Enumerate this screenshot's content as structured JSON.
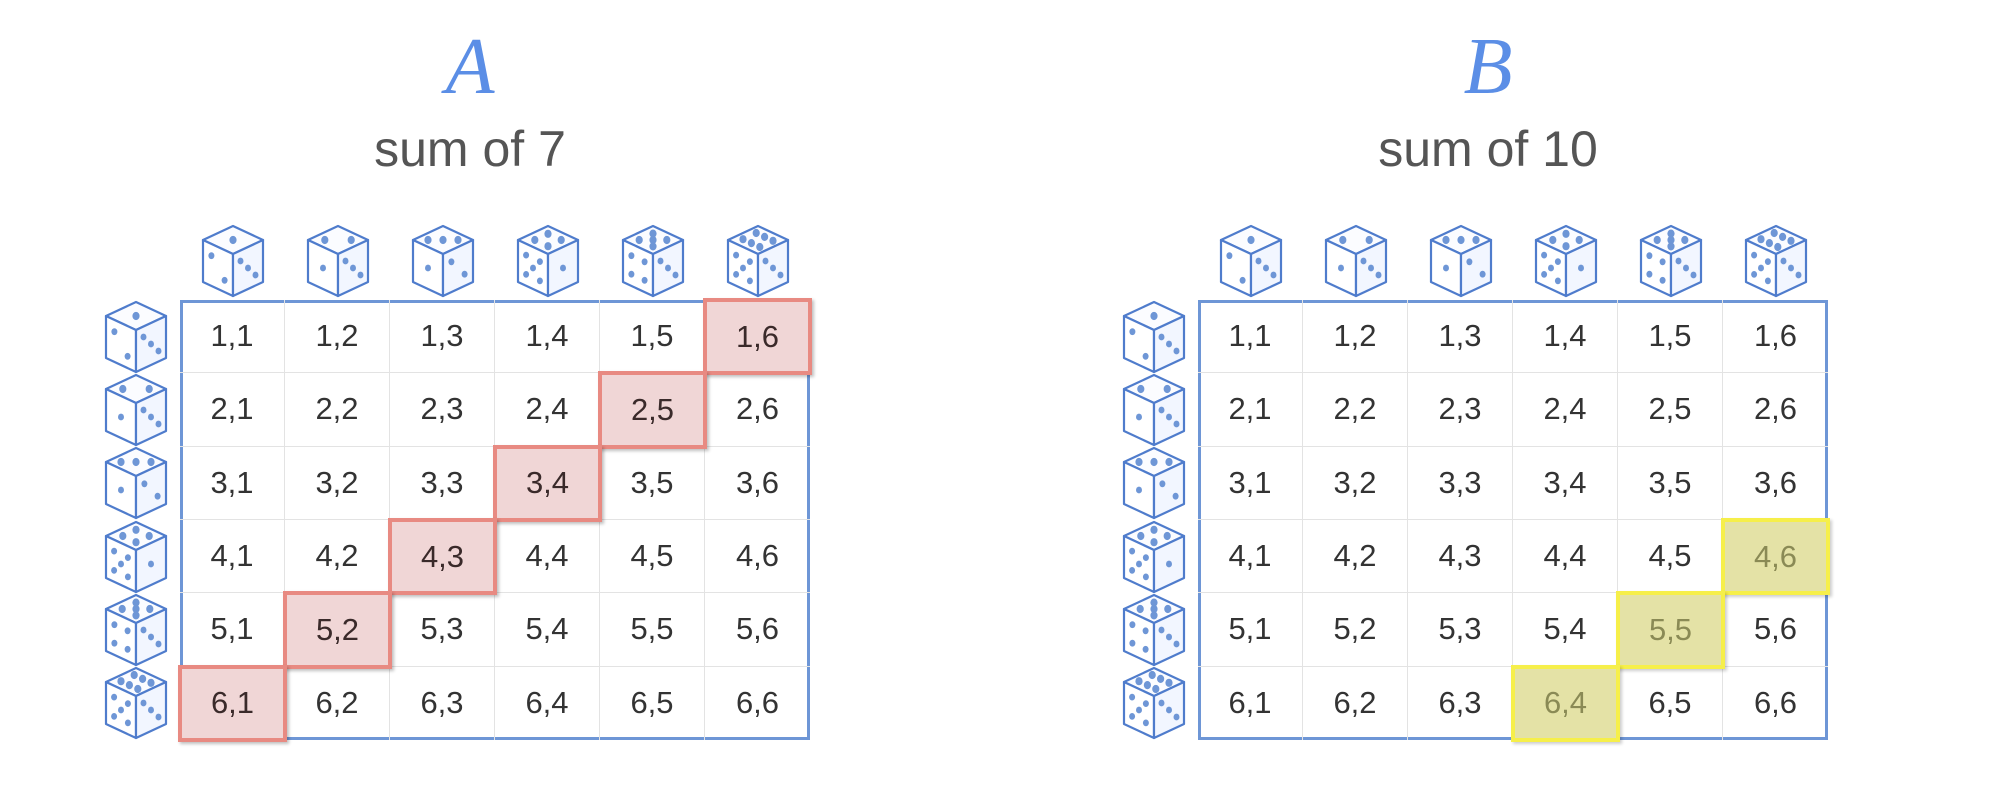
{
  "panels": [
    {
      "id": "a",
      "letter": "A",
      "subtitle": "sum of 7",
      "highlight_style": "red",
      "highlight_color": "#e88a82",
      "highlighted": [
        "1,6",
        "2,5",
        "3,4",
        "4,3",
        "5,2",
        "6,1"
      ]
    },
    {
      "id": "b",
      "letter": "B",
      "subtitle": "sum of 10",
      "highlight_style": "yellow",
      "highlight_color": "#f6ef4a",
      "highlighted": [
        "4,6",
        "5,5",
        "6,4"
      ]
    }
  ],
  "dice_faces": [
    1,
    2,
    3,
    4,
    5,
    6
  ],
  "dice_icon": "die-icon",
  "dice_color": "#6e96d6",
  "rows": [
    [
      "1,1",
      "1,2",
      "1,3",
      "1,4",
      "1,5",
      "1,6"
    ],
    [
      "2,1",
      "2,2",
      "2,3",
      "2,4",
      "2,5",
      "2,6"
    ],
    [
      "3,1",
      "3,2",
      "3,3",
      "3,4",
      "3,5",
      "3,6"
    ],
    [
      "4,1",
      "4,2",
      "4,3",
      "4,4",
      "4,5",
      "4,6"
    ],
    [
      "5,1",
      "5,2",
      "5,3",
      "5,4",
      "5,5",
      "5,6"
    ],
    [
      "6,1",
      "6,2",
      "6,3",
      "6,4",
      "6,5",
      "6,6"
    ]
  ]
}
